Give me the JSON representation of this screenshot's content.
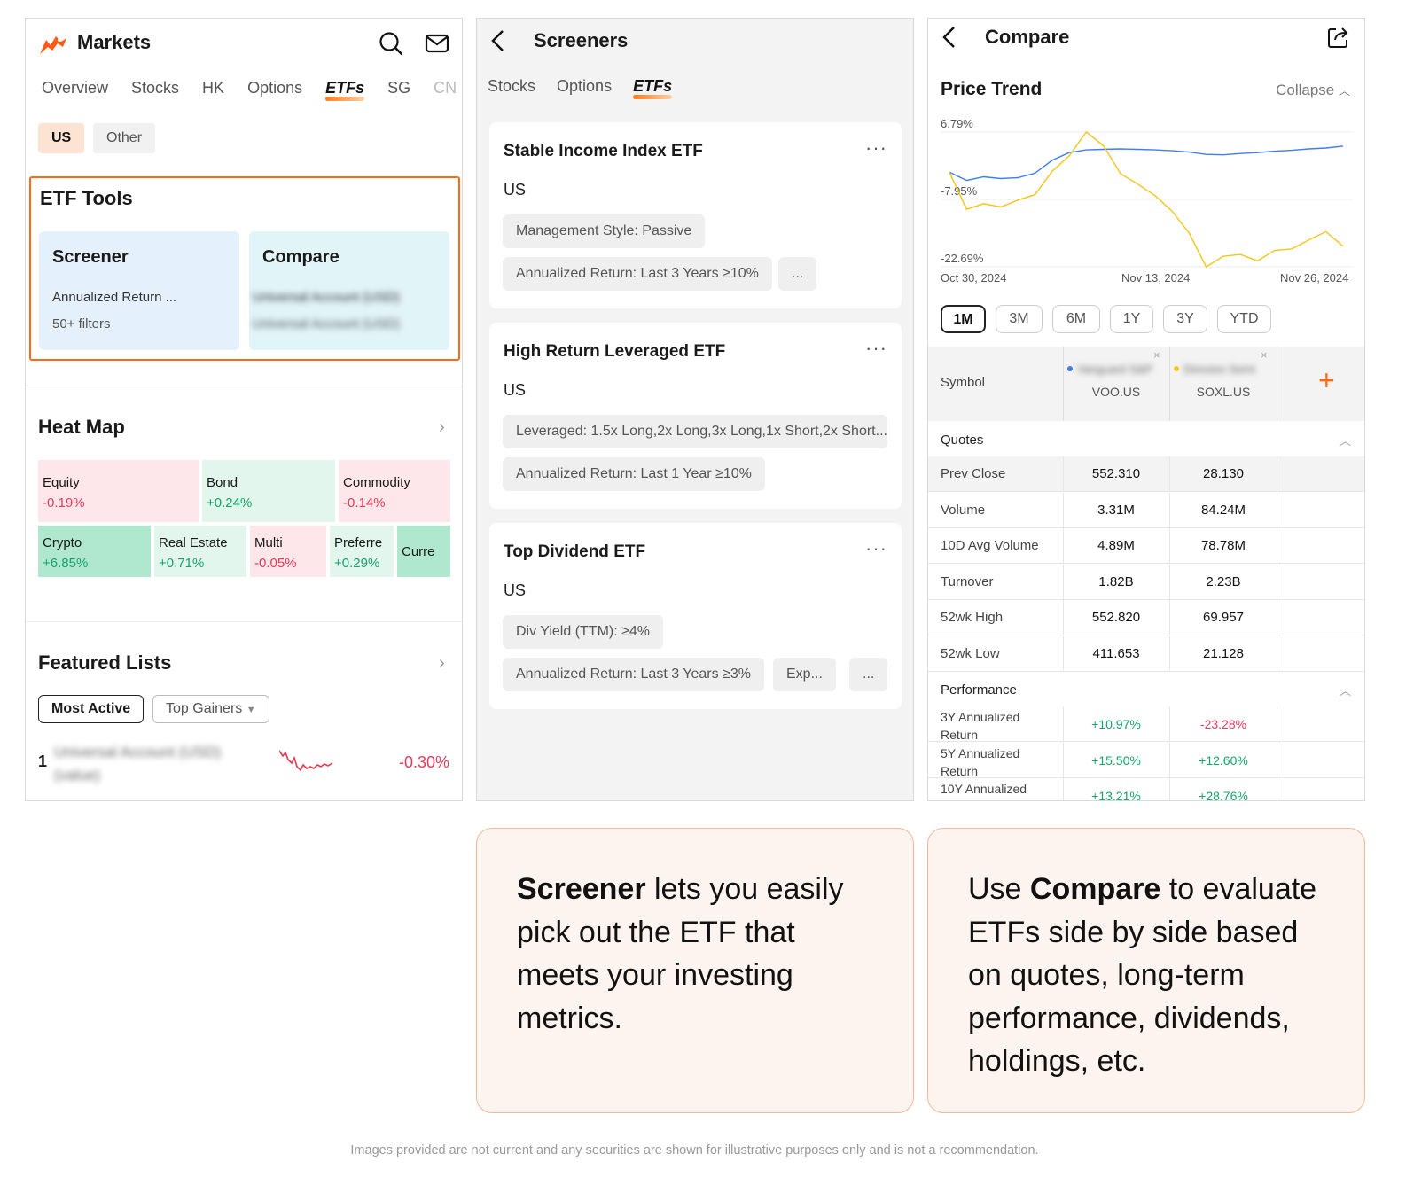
{
  "markets": {
    "title": "Markets",
    "tabs": [
      "Overview",
      "Stocks",
      "HK",
      "Options",
      "ETFs",
      "SG",
      "CN"
    ],
    "active_tab": "ETFs",
    "region_us": "US",
    "region_other": "Other",
    "etf_tools": {
      "title": "ETF Tools",
      "screener_title": "Screener",
      "screener_sub": "Annualized Return ...",
      "screener_filters": "50+ filters",
      "compare_title": "Compare",
      "compare_line1": "Universal Account (USD)",
      "compare_line2": "Universal Account (USD)"
    },
    "heat_map": {
      "title": "Heat Map",
      "cells": [
        {
          "name": "Equity",
          "change": "-0.19%"
        },
        {
          "name": "Bond",
          "change": "+0.24%"
        },
        {
          "name": "Commodity",
          "change": "-0.14%"
        },
        {
          "name": "Crypto",
          "change": "+6.85%"
        },
        {
          "name": "Real Estate",
          "change": "+0.71%"
        },
        {
          "name": "Multi",
          "change": "-0.05%"
        },
        {
          "name": "Preferre",
          "change": "+0.29%"
        },
        {
          "name": "Curre",
          "change": ""
        }
      ]
    },
    "featured": {
      "title": "Featured Lists",
      "btn_active": "Most Active",
      "btn_gainers": "Top Gainers",
      "row_rank": "1",
      "row_name": "Universal Account (USD)",
      "row_name2": "(value)",
      "row_change": "-0.30%"
    }
  },
  "screeners": {
    "title": "Screeners",
    "tabs": [
      "Stocks",
      "Options",
      "ETFs"
    ],
    "active_tab": "ETFs",
    "cards": [
      {
        "title": "Stable Income Index ETF",
        "market": "US",
        "chips": [
          "Management Style: Passive",
          "Annualized Return: Last 3 Years ≥10%",
          "..."
        ]
      },
      {
        "title": "High Return Leveraged ETF",
        "market": "US",
        "chips": [
          "Leveraged: 1.5x Long,2x Long,3x Long,1x Short,2x Short...",
          "Annualized Return: Last 1 Year ≥10%"
        ]
      },
      {
        "title": "Top Dividend ETF",
        "market": "US",
        "chips": [
          "Div Yield (TTM): ≥4%",
          "Annualized Return: Last 3 Years ≥3%",
          "Exp...",
          "..."
        ]
      }
    ]
  },
  "compare": {
    "title": "Compare",
    "price_trend": "Price Trend",
    "collapse": "Collapse",
    "periods": [
      "1M",
      "3M",
      "6M",
      "1Y",
      "3Y",
      "YTD"
    ],
    "active_period": "1M",
    "symbol_label": "Symbol",
    "symbols": [
      {
        "code": "VOO.US",
        "name": "Vanguard S&P",
        "color": "#3d7ef0"
      },
      {
        "code": "SOXL.US",
        "name": "Direxion Semi",
        "color": "#f5c518"
      }
    ],
    "quotes_title": "Quotes",
    "quotes": [
      {
        "label": "Prev Close",
        "v1": "552.310",
        "v2": "28.130"
      },
      {
        "label": "Volume",
        "v1": "3.31M",
        "v2": "84.24M"
      },
      {
        "label": "10D Avg Volume",
        "v1": "4.89M",
        "v2": "78.78M"
      },
      {
        "label": "Turnover",
        "v1": "1.82B",
        "v2": "2.23B"
      },
      {
        "label": "52wk High",
        "v1": "552.820",
        "v2": "69.957"
      },
      {
        "label": "52wk Low",
        "v1": "411.653",
        "v2": "21.128"
      }
    ],
    "performance_title": "Performance",
    "performance": [
      {
        "label": "3Y Annualized Return",
        "v1": "+10.97%",
        "v2": "-23.28%"
      },
      {
        "label": "5Y Annualized Return",
        "v1": "+15.50%",
        "v2": "+12.60%"
      },
      {
        "label": "10Y Annualized",
        "v1": "+13.21%",
        "v2": "+28.76%"
      }
    ]
  },
  "chart_data": {
    "type": "line",
    "yticks": [
      "6.79%",
      "-7.95%",
      "-22.69%"
    ],
    "ylim": [
      -22.69,
      6.79
    ],
    "xticks": [
      "Oct 30, 2024",
      "Nov 13, 2024",
      "Nov 26, 2024"
    ],
    "series": [
      {
        "name": "VOO.US",
        "color": "#3d7ef0",
        "values": [
          -2.0,
          -3.8,
          -3.0,
          -3.4,
          -3.2,
          -2.2,
          0.6,
          2.3,
          2.9,
          3.0,
          3.1,
          3.0,
          2.9,
          2.7,
          2.4,
          1.9,
          1.8,
          2.1,
          2.3,
          2.6,
          2.8,
          3.1,
          3.3,
          3.7
        ]
      },
      {
        "name": "SOXL.US",
        "color": "#f5c518",
        "values": [
          -2.0,
          -10.1,
          -8.9,
          -9.6,
          -8.1,
          -6.9,
          -1.8,
          1.6,
          6.8,
          3.8,
          -2.3,
          -4.6,
          -7.1,
          -10.5,
          -15.3,
          -22.7,
          -20.4,
          -20.0,
          -21.4,
          -19.1,
          -18.8,
          -16.8,
          -15.0,
          -18.2
        ]
      }
    ]
  },
  "notes": {
    "screener_bold": "Screener",
    "screener_rest": " lets you easily pick out the ETF that meets your investing metrics.",
    "compare_pre": "Use ",
    "compare_bold": "Compare",
    "compare_rest": " to evaluate ETFs side by side based on quotes, long-term performance, dividends, holdings, etc."
  },
  "disclaimer": "Images provided are not current and any securities are shown for illustrative purposes only and is not a recommendation."
}
